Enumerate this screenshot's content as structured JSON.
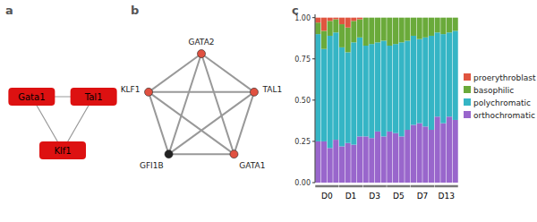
{
  "chart_data": [
    {
      "type": "network",
      "title": "a",
      "nodes": [
        "Gata1",
        "Tal1",
        "Klf1"
      ],
      "edges": [
        [
          "Gata1",
          "Tal1"
        ],
        [
          "Gata1",
          "Klf1"
        ],
        [
          "Tal1",
          "Klf1"
        ]
      ],
      "color": "#dd1111"
    },
    {
      "type": "network",
      "title": "b",
      "nodes": [
        "GATA2",
        "TAL1",
        "GATA1",
        "GFI1B",
        "KLF1"
      ],
      "colors": [
        "#e05040",
        "#e05040",
        "#e05040",
        "#222222",
        "#e05040"
      ],
      "edges": [
        [
          "GATA2",
          "TAL1"
        ],
        [
          "GATA2",
          "GATA1"
        ],
        [
          "GATA2",
          "GFI1B"
        ],
        [
          "GATA2",
          "KLF1"
        ],
        [
          "TAL1",
          "GATA1"
        ],
        [
          "TAL1",
          "GFI1B"
        ],
        [
          "TAL1",
          "KLF1"
        ],
        [
          "GATA1",
          "GFI1B"
        ],
        [
          "GATA1",
          "KLF1"
        ],
        [
          "GFI1B",
          "KLF1"
        ]
      ]
    },
    {
      "type": "bar",
      "title": "c",
      "stacked": true,
      "legend": "right",
      "categories": [
        "D0",
        "D0",
        "D0",
        "D0",
        "D1",
        "D1",
        "D1",
        "D1",
        "D3",
        "D3",
        "D3",
        "D3",
        "D5",
        "D5",
        "D5",
        "D5",
        "D7",
        "D7",
        "D7",
        "D7",
        "D13",
        "D13",
        "D13",
        "D13"
      ],
      "series": [
        {
          "name": "orthochromatic",
          "color": "#9966cc",
          "values": [
            0.25,
            0.25,
            0.21,
            0.26,
            0.22,
            0.24,
            0.23,
            0.28,
            0.28,
            0.27,
            0.31,
            0.28,
            0.31,
            0.3,
            0.28,
            0.32,
            0.35,
            0.36,
            0.34,
            0.32,
            0.4,
            0.36,
            0.4,
            0.38
          ]
        },
        {
          "name": "polychromatic",
          "color": "#35b5c5",
          "values": [
            0.65,
            0.56,
            0.68,
            0.65,
            0.6,
            0.55,
            0.62,
            0.6,
            0.55,
            0.57,
            0.54,
            0.58,
            0.52,
            0.54,
            0.57,
            0.54,
            0.54,
            0.51,
            0.54,
            0.57,
            0.51,
            0.54,
            0.51,
            0.54
          ]
        },
        {
          "name": "basophilic",
          "color": "#6aaa3a",
          "values": [
            0.07,
            0.11,
            0.09,
            0.08,
            0.14,
            0.15,
            0.13,
            0.11,
            0.17,
            0.16,
            0.15,
            0.14,
            0.17,
            0.16,
            0.15,
            0.14,
            0.11,
            0.13,
            0.12,
            0.11,
            0.09,
            0.1,
            0.09,
            0.08
          ]
        },
        {
          "name": "proerythroblast",
          "color": "#e05540",
          "values": [
            0.03,
            0.08,
            0.02,
            0.01,
            0.04,
            0.06,
            0.02,
            0.01,
            0.0,
            0.0,
            0.0,
            0.0,
            0.0,
            0.0,
            0.0,
            0.0,
            0.0,
            0.0,
            0.0,
            0.0,
            0.0,
            0.0,
            0.0,
            0.0
          ]
        }
      ],
      "ylim": [
        0,
        1.02
      ],
      "yticks": [
        {
          "value": 0,
          "label": "0.00"
        },
        {
          "value": 0.25,
          "label": "0.25"
        },
        {
          "value": 0.5,
          "label": "0.50"
        },
        {
          "value": 0.75,
          "label": "0.75"
        },
        {
          "value": 1,
          "label": "1.00"
        }
      ]
    }
  ]
}
